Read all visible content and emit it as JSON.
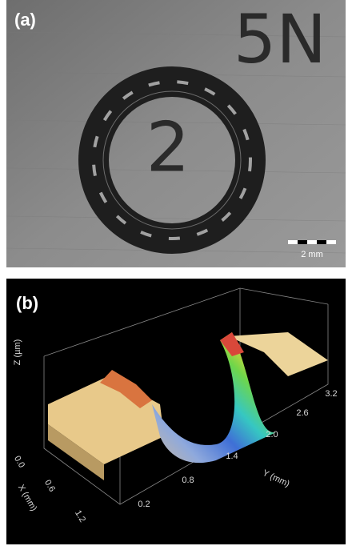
{
  "panel_a": {
    "label": "(a)",
    "marks": [
      "5N",
      "2"
    ],
    "scale_bar": "2 mm"
  },
  "panel_b": {
    "label": "(b)",
    "z_axis": "Z (µm)",
    "x_axis": "X (mm)",
    "y_axis": "Y (mm)",
    "x_ticks": [
      "0.0",
      "0.6",
      "1.2"
    ],
    "y_ticks": [
      "0.2",
      "0.8",
      "1.4",
      "2.0",
      "2.6",
      "3.2"
    ]
  }
}
